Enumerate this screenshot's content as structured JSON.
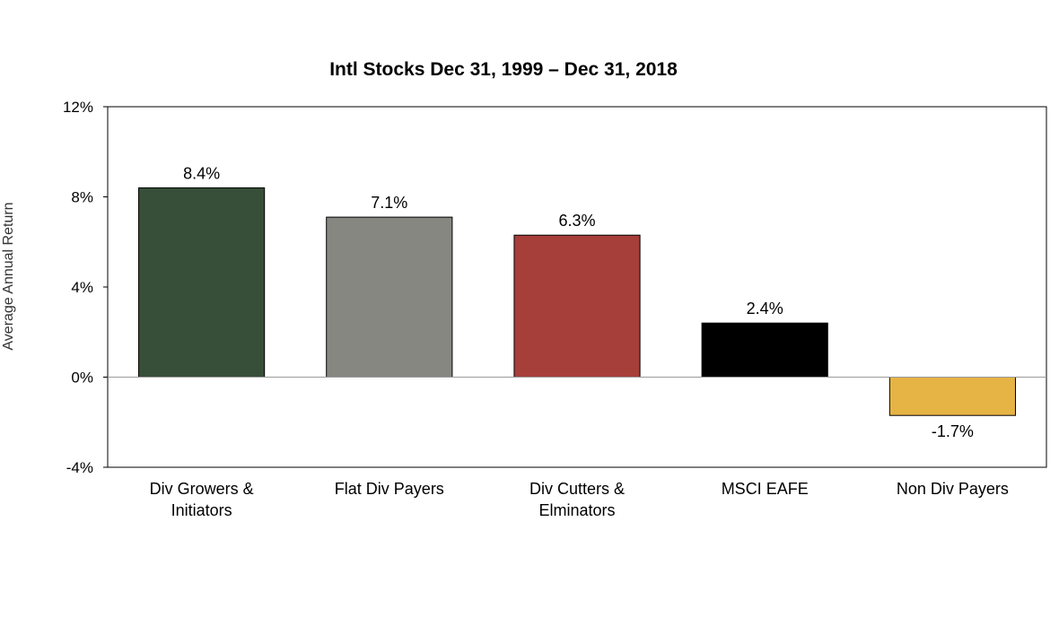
{
  "chart_data": {
    "type": "bar",
    "title": "Intl Stocks Dec 31, 1999 – Dec 31, 2018",
    "xlabel": "",
    "ylabel": "Average Annual Return",
    "ylim": [
      -4,
      12
    ],
    "yticks": [
      -4,
      0,
      4,
      8,
      12
    ],
    "ytick_labels": [
      "-4%",
      "0%",
      "4%",
      "8%",
      "12%"
    ],
    "grid": false,
    "legend": "none",
    "categories": [
      [
        "Div Growers &",
        "Initiators"
      ],
      [
        "Flat Div Payers"
      ],
      [
        "Div Cutters &",
        "Elminators"
      ],
      [
        "MSCI EAFE"
      ],
      [
        "Non Div Payers"
      ]
    ],
    "values": [
      8.4,
      7.1,
      6.3,
      2.4,
      -1.7
    ],
    "value_labels": [
      "8.4%",
      "7.1%",
      "6.3%",
      "2.4%",
      "-1.7%"
    ],
    "colors": [
      "#374f38",
      "#878782",
      "#a63f39",
      "#000000",
      "#e6b445"
    ]
  }
}
